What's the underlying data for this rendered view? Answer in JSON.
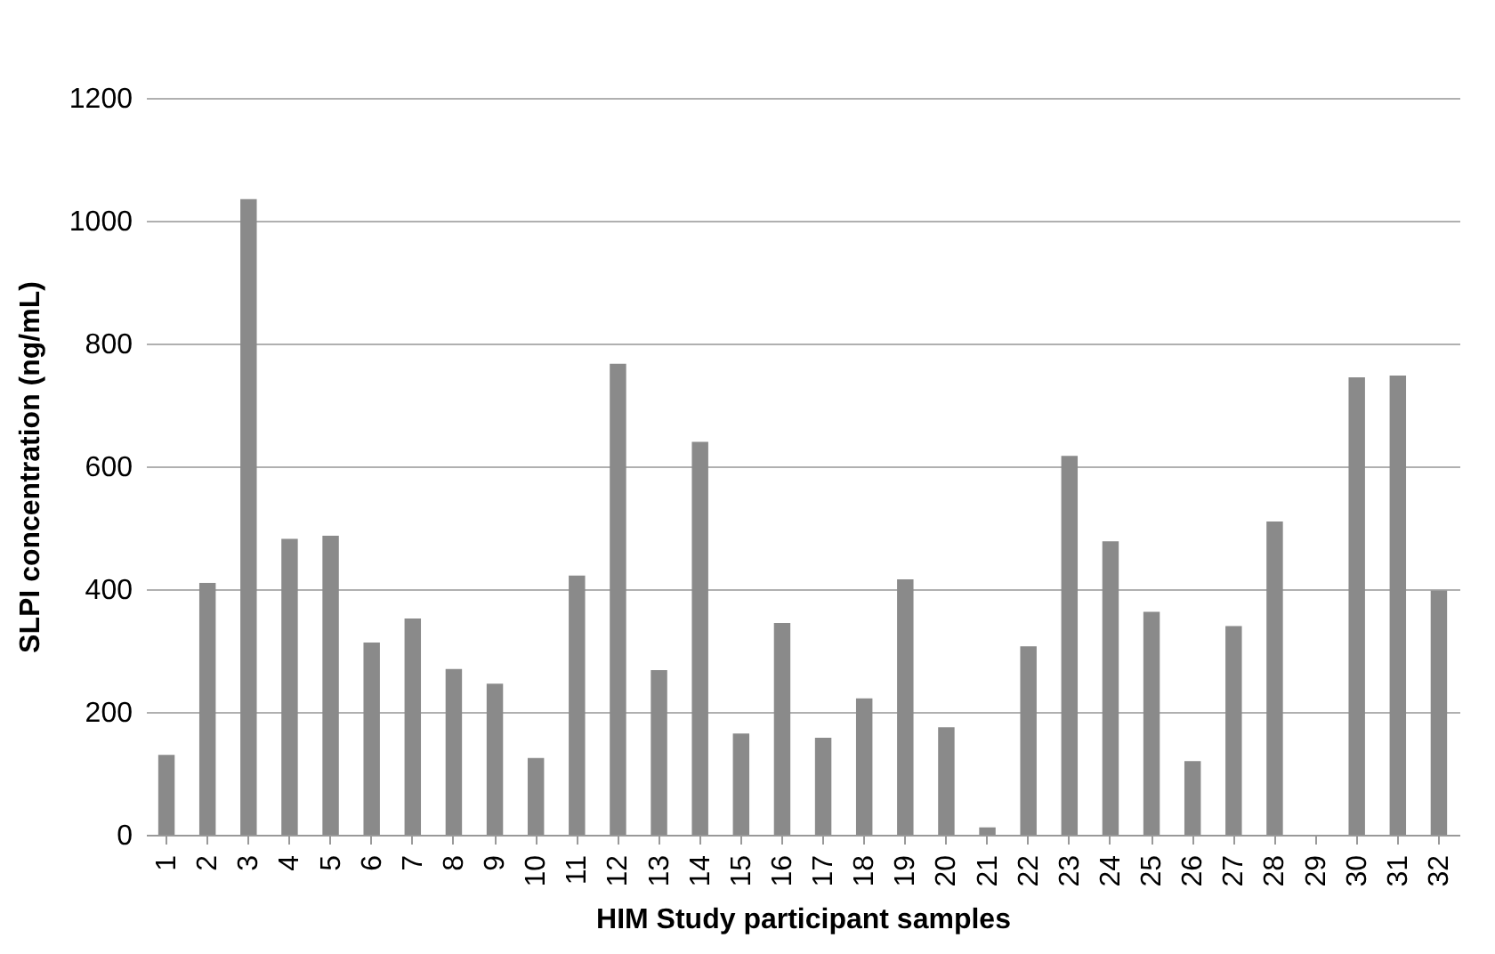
{
  "chart_data": {
    "type": "bar",
    "xlabel": "HIM Study participant samples",
    "ylabel": "SLPI concentration (ng/mL)",
    "categories": [
      "1",
      "2",
      "3",
      "4",
      "5",
      "6",
      "7",
      "8",
      "9",
      "10",
      "11",
      "12",
      "13",
      "14",
      "15",
      "16",
      "17",
      "18",
      "19",
      "20",
      "21",
      "22",
      "23",
      "24",
      "25",
      "26",
      "27",
      "28",
      "29",
      "30",
      "31",
      "32"
    ],
    "values": [
      130,
      410,
      1035,
      482,
      487,
      313,
      352,
      270,
      246,
      125,
      422,
      767,
      268,
      640,
      165,
      345,
      158,
      222,
      416,
      175,
      12,
      307,
      617,
      478,
      363,
      120,
      340,
      510,
      0,
      745,
      748,
      398
    ],
    "color": "#8a8a8a",
    "ylim": [
      0,
      1200
    ],
    "yticks": [
      0,
      200,
      400,
      600,
      800,
      1000,
      1200
    ],
    "grid": "y"
  }
}
